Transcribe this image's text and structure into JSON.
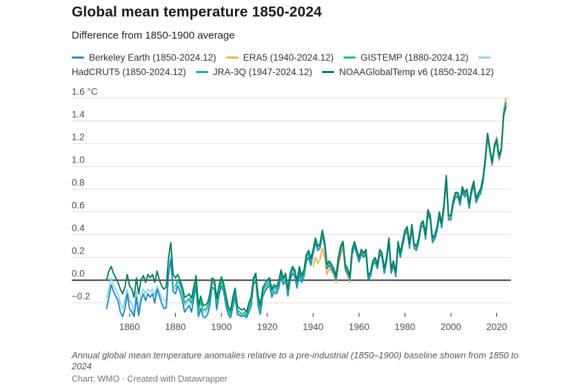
{
  "footer": {
    "note": "Annual global mean temperature anomalies relative to a pre-industrial (1850–1900) baseline shown from 1850 to 2024",
    "credit": "Chart: WMO · Created with Datawrapper"
  },
  "chart_data": {
    "type": "line",
    "title": "Global mean temperature 1850-2024",
    "subtitle": "Difference from 1850-1900 average",
    "legend_position": "top",
    "grid": "horizontal",
    "baseline_value": 0.0,
    "x_axis": {
      "range": [
        1850,
        2024
      ],
      "ticks": [
        1860,
        1880,
        1900,
        1920,
        1940,
        1960,
        1980,
        2000,
        2020
      ]
    },
    "y_axis": {
      "unit": "°C",
      "range": [
        -0.35,
        1.65
      ],
      "ticks": [
        {
          "value": 1.6,
          "label": "1.6 °C"
        },
        {
          "value": 1.4,
          "label": "1.4"
        },
        {
          "value": 1.2,
          "label": "1.2"
        },
        {
          "value": 1.0,
          "label": "1.0"
        },
        {
          "value": 0.8,
          "label": "0.8"
        },
        {
          "value": 0.6,
          "label": "0.6"
        },
        {
          "value": 0.4,
          "label": "0.4"
        },
        {
          "value": 0.2,
          "label": "0.2"
        },
        {
          "value": 0.0,
          "label": "0.0"
        },
        {
          "value": -0.2,
          "label": "−0.2"
        }
      ]
    },
    "series": [
      {
        "id": "berkeley",
        "name": "Berkeley Earth (1850-2024.12)",
        "color": "#1e8cbf",
        "start_year": 1850,
        "values": [
          -0.25,
          -0.15,
          -0.04,
          -0.1,
          -0.14,
          -0.18,
          -0.28,
          -0.32,
          -0.25,
          -0.12,
          -0.25,
          -0.28,
          -0.32,
          -0.15,
          -0.31,
          -0.18,
          -0.12,
          -0.18,
          -0.12,
          -0.15,
          -0.12,
          -0.2,
          -0.08,
          -0.14,
          -0.2,
          -0.25,
          -0.24,
          0.05,
          0.18,
          -0.1,
          -0.12,
          -0.05,
          -0.1,
          -0.18,
          -0.28,
          -0.25,
          -0.22,
          -0.28,
          -0.16,
          -0.06,
          -0.32,
          -0.25,
          -0.32,
          -0.33,
          -0.3,
          -0.22,
          -0.06,
          -0.08,
          -0.26,
          -0.13,
          -0.05,
          -0.1,
          -0.22,
          -0.3,
          -0.33,
          -0.24,
          -0.15,
          -0.3,
          -0.31,
          -0.32,
          -0.31,
          -0.33,
          -0.28,
          -0.23,
          -0.04,
          0.0,
          -0.22,
          -0.3,
          -0.15,
          -0.1,
          -0.07,
          -0.04,
          -0.15,
          -0.1,
          -0.12,
          -0.07,
          0.03,
          -0.04,
          0.0,
          -0.14,
          0.0,
          0.06,
          0.03,
          -0.07,
          0.06,
          -0.02,
          0.03,
          0.16,
          0.2,
          0.13,
          0.23,
          0.33,
          0.26,
          0.28,
          0.4,
          0.3,
          0.1,
          0.13,
          0.1,
          0.06,
          0.0,
          0.16,
          0.26,
          0.34,
          0.1,
          0.06,
          0.0,
          0.23,
          0.3,
          0.23,
          0.16,
          0.23,
          0.2,
          0.23,
          0.0,
          0.03,
          0.13,
          0.16,
          0.1,
          0.23,
          0.2,
          0.06,
          0.16,
          0.33,
          0.06,
          0.13,
          0.03,
          0.3,
          0.2,
          0.3,
          0.4,
          0.43,
          0.28,
          0.45,
          0.28,
          0.26,
          0.33,
          0.46,
          0.48,
          0.36,
          0.58,
          0.53,
          0.33,
          0.36,
          0.43,
          0.56,
          0.46,
          0.63,
          0.88,
          0.53,
          0.53,
          0.66,
          0.73,
          0.73,
          0.66,
          0.78,
          0.73,
          0.76,
          0.63,
          0.76,
          0.83,
          0.68,
          0.73,
          0.76,
          0.86,
          1.03,
          1.27,
          1.14,
          1.02,
          1.17,
          1.22,
          1.07,
          1.14,
          1.47,
          1.56
        ]
      },
      {
        "id": "era5",
        "name": "ERA5 (1940-2024.12)",
        "color": "#f4b04a",
        "start_year": 1940,
        "values": [
          0.12,
          0.2,
          0.15,
          0.18,
          0.28,
          0.2,
          0.05,
          0.1,
          0.08,
          0.05,
          -0.02,
          0.12,
          0.22,
          0.28,
          0.08,
          0.05,
          -0.02,
          0.22,
          0.3,
          0.23,
          0.17,
          0.24,
          0.21,
          0.24,
          0.01,
          0.04,
          0.14,
          0.17,
          0.11,
          0.24,
          0.21,
          0.07,
          0.17,
          0.34,
          0.07,
          0.14,
          0.04,
          0.31,
          0.21,
          0.31,
          0.41,
          0.44,
          0.29,
          0.46,
          0.29,
          0.27,
          0.34,
          0.47,
          0.49,
          0.37,
          0.59,
          0.54,
          0.34,
          0.37,
          0.44,
          0.57,
          0.47,
          0.64,
          0.89,
          0.54,
          0.54,
          0.67,
          0.74,
          0.74,
          0.67,
          0.79,
          0.74,
          0.77,
          0.64,
          0.77,
          0.84,
          0.69,
          0.74,
          0.77,
          0.87,
          1.04,
          1.26,
          1.13,
          1.01,
          1.16,
          1.26,
          1.06,
          1.13,
          1.48,
          1.6
        ]
      },
      {
        "id": "gistemp",
        "name": "GISTEMP (1880-2024.12)",
        "color": "#12bf86",
        "start_year": 1880,
        "values": [
          -0.05,
          0.0,
          -0.03,
          -0.1,
          -0.2,
          -0.18,
          -0.16,
          -0.2,
          -0.1,
          0.0,
          -0.26,
          -0.18,
          -0.26,
          -0.26,
          -0.23,
          -0.16,
          0.0,
          -0.03,
          -0.2,
          -0.08,
          0.0,
          -0.06,
          -0.16,
          -0.26,
          -0.3,
          -0.18,
          -0.1,
          -0.26,
          -0.28,
          -0.3,
          -0.28,
          -0.31,
          -0.23,
          -0.18,
          0.0,
          0.04,
          -0.16,
          -0.26,
          -0.1,
          -0.06,
          -0.03,
          0.0,
          -0.1,
          -0.06,
          -0.08,
          -0.03,
          0.07,
          0.0,
          0.04,
          -0.1,
          0.04,
          0.1,
          0.07,
          -0.03,
          0.1,
          0.02,
          0.07,
          0.2,
          0.24,
          0.17,
          0.26,
          0.36,
          0.29,
          0.31,
          0.43,
          0.33,
          0.13,
          0.16,
          0.13,
          0.09,
          0.03,
          0.19,
          0.29,
          0.33,
          0.13,
          0.09,
          0.03,
          0.26,
          0.33,
          0.26,
          0.19,
          0.26,
          0.23,
          0.26,
          0.03,
          0.06,
          0.16,
          0.19,
          0.13,
          0.26,
          0.23,
          0.09,
          0.19,
          0.36,
          0.09,
          0.16,
          0.06,
          0.33,
          0.23,
          0.33,
          0.43,
          0.46,
          0.31,
          0.48,
          0.31,
          0.29,
          0.36,
          0.49,
          0.51,
          0.39,
          0.61,
          0.56,
          0.36,
          0.39,
          0.46,
          0.59,
          0.49,
          0.66,
          0.91,
          0.56,
          0.56,
          0.69,
          0.76,
          0.76,
          0.69,
          0.81,
          0.76,
          0.79,
          0.66,
          0.79,
          0.86,
          0.71,
          0.76,
          0.79,
          0.89,
          1.06,
          1.28,
          1.15,
          1.03,
          1.18,
          1.23,
          1.08,
          1.15,
          1.46,
          1.54
        ]
      },
      {
        "id": "hadcrut5",
        "name": "HadCRUT5 (1850-2024.12)",
        "color": "#8fd3ec",
        "start_year": 1850,
        "values": [
          -0.15,
          -0.08,
          0.02,
          -0.05,
          -0.08,
          -0.12,
          -0.2,
          -0.25,
          -0.18,
          -0.08,
          -0.18,
          -0.2,
          -0.32,
          -0.1,
          -0.28,
          -0.12,
          -0.08,
          -0.12,
          -0.08,
          -0.1,
          -0.08,
          -0.14,
          -0.05,
          -0.1,
          -0.15,
          -0.18,
          -0.18,
          0.08,
          0.22,
          -0.05,
          -0.08,
          -0.02,
          -0.05,
          -0.12,
          -0.22,
          -0.2,
          -0.18,
          -0.22,
          -0.12,
          -0.02,
          -0.28,
          -0.2,
          -0.28,
          -0.28,
          -0.25,
          -0.18,
          -0.02,
          -0.05,
          -0.22,
          -0.1,
          -0.02,
          -0.08,
          -0.18,
          -0.28,
          -0.32,
          -0.2,
          -0.12,
          -0.28,
          -0.3,
          -0.32,
          -0.3,
          -0.33,
          -0.25,
          -0.2,
          -0.02,
          0.02,
          -0.18,
          -0.28,
          -0.12,
          -0.08,
          -0.05,
          -0.02,
          -0.12,
          -0.08,
          -0.1,
          -0.05,
          0.05,
          -0.02,
          0.02,
          -0.12,
          0.02,
          0.08,
          0.05,
          -0.05,
          0.08,
          0.0,
          0.05,
          0.18,
          0.22,
          0.15,
          0.25,
          0.35,
          0.28,
          0.3,
          0.42,
          0.32,
          0.12,
          0.15,
          0.12,
          0.08,
          0.02,
          0.18,
          0.28,
          0.32,
          0.12,
          0.08,
          0.02,
          0.25,
          0.32,
          0.25,
          0.18,
          0.25,
          0.22,
          0.25,
          0.02,
          0.05,
          0.15,
          0.18,
          0.12,
          0.25,
          0.22,
          0.08,
          0.18,
          0.35,
          0.08,
          0.15,
          0.05,
          0.32,
          0.22,
          0.32,
          0.42,
          0.45,
          0.3,
          0.47,
          0.3,
          0.28,
          0.35,
          0.48,
          0.5,
          0.38,
          0.6,
          0.55,
          0.35,
          0.38,
          0.45,
          0.58,
          0.48,
          0.65,
          0.9,
          0.55,
          0.55,
          0.68,
          0.75,
          0.75,
          0.68,
          0.8,
          0.75,
          0.78,
          0.65,
          0.78,
          0.85,
          0.7,
          0.75,
          0.78,
          0.88,
          1.05,
          1.25,
          1.12,
          1.0,
          1.15,
          1.2,
          1.05,
          1.12,
          1.45,
          1.55
        ]
      },
      {
        "id": "jra3q",
        "name": "JRA-3Q (1947-2024.12)",
        "color": "#0fb3a1",
        "start_year": 1947,
        "values": [
          0.16,
          0.13,
          0.09,
          0.03,
          0.19,
          0.29,
          0.33,
          0.13,
          0.09,
          0.03,
          0.26,
          0.33,
          0.26,
          0.19,
          0.26,
          0.23,
          0.26,
          0.03,
          0.06,
          0.16,
          0.19,
          0.13,
          0.26,
          0.23,
          0.09,
          0.19,
          0.36,
          0.09,
          0.16,
          0.06,
          0.33,
          0.23,
          0.33,
          0.43,
          0.46,
          0.31,
          0.48,
          0.31,
          0.29,
          0.36,
          0.49,
          0.51,
          0.39,
          0.61,
          0.56,
          0.36,
          0.39,
          0.46,
          0.59,
          0.49,
          0.66,
          0.91,
          0.56,
          0.56,
          0.69,
          0.76,
          0.76,
          0.69,
          0.81,
          0.76,
          0.79,
          0.66,
          0.79,
          0.86,
          0.71,
          0.76,
          0.79,
          0.89,
          1.06,
          1.28,
          1.15,
          1.03,
          1.18,
          1.23,
          1.08,
          1.15,
          1.44,
          1.53
        ]
      },
      {
        "id": "noaa",
        "name": "NOAAGlobalTemp v6 (1850-2024.12)",
        "color": "#0b7c5c",
        "start_year": 1850,
        "values": [
          0.0,
          0.08,
          0.12,
          0.06,
          0.02,
          -0.02,
          -0.08,
          -0.12,
          -0.06,
          0.05,
          -0.05,
          -0.08,
          -0.15,
          0.02,
          -0.12,
          0.0,
          0.04,
          -0.02,
          0.05,
          0.02,
          0.05,
          -0.02,
          0.08,
          0.0,
          -0.05,
          -0.08,
          -0.06,
          0.2,
          0.33,
          0.05,
          0.02,
          0.05,
          0.0,
          -0.06,
          -0.15,
          -0.14,
          -0.12,
          -0.16,
          -0.06,
          0.04,
          -0.22,
          -0.14,
          -0.22,
          -0.22,
          -0.2,
          -0.12,
          0.02,
          0.0,
          -0.16,
          -0.05,
          0.03,
          -0.03,
          -0.13,
          -0.23,
          -0.27,
          -0.15,
          -0.07,
          -0.23,
          -0.25,
          -0.26,
          -0.25,
          -0.28,
          -0.2,
          -0.15,
          0.02,
          0.06,
          -0.13,
          -0.22,
          -0.07,
          -0.03,
          0.0,
          0.02,
          -0.08,
          -0.04,
          -0.06,
          -0.01,
          0.09,
          0.02,
          0.06,
          -0.08,
          0.06,
          0.12,
          0.09,
          -0.01,
          0.12,
          0.04,
          0.09,
          0.22,
          0.26,
          0.19,
          0.27,
          0.37,
          0.3,
          0.32,
          0.44,
          0.34,
          0.14,
          0.17,
          0.14,
          0.1,
          0.04,
          0.2,
          0.3,
          0.34,
          0.14,
          0.1,
          0.04,
          0.27,
          0.34,
          0.27,
          0.2,
          0.27,
          0.24,
          0.27,
          0.04,
          0.07,
          0.17,
          0.2,
          0.14,
          0.27,
          0.24,
          0.1,
          0.2,
          0.37,
          0.1,
          0.17,
          0.07,
          0.34,
          0.24,
          0.34,
          0.44,
          0.47,
          0.32,
          0.49,
          0.32,
          0.3,
          0.37,
          0.5,
          0.52,
          0.4,
          0.62,
          0.57,
          0.37,
          0.4,
          0.47,
          0.6,
          0.5,
          0.67,
          0.92,
          0.57,
          0.57,
          0.7,
          0.77,
          0.77,
          0.7,
          0.82,
          0.77,
          0.8,
          0.67,
          0.8,
          0.87,
          0.72,
          0.77,
          0.8,
          0.9,
          1.07,
          1.29,
          1.16,
          1.04,
          1.19,
          1.24,
          1.09,
          1.16,
          1.45,
          1.52
        ]
      }
    ]
  }
}
